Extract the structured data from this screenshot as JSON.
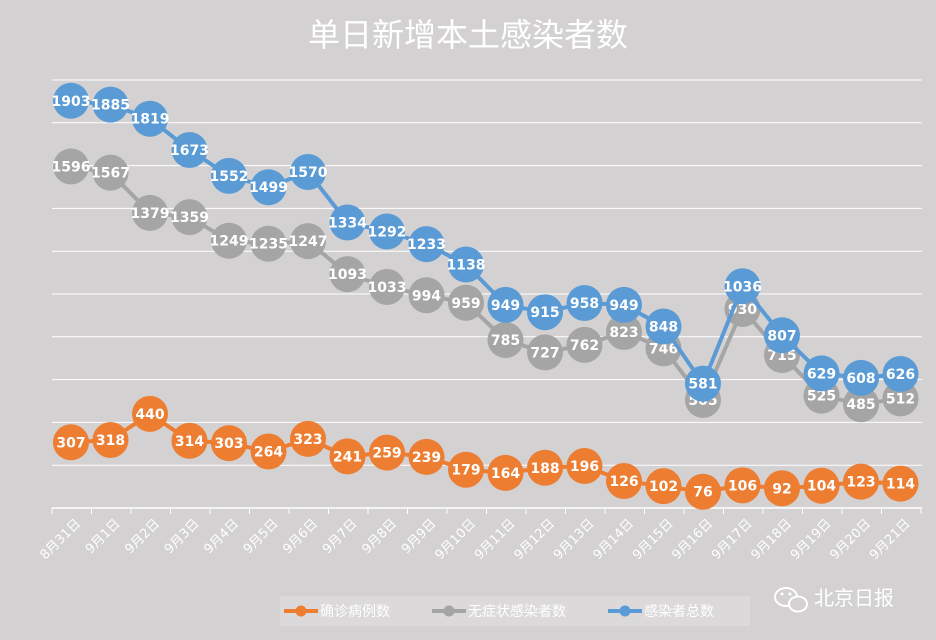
{
  "chart_data": {
    "type": "line",
    "title": "单日新增本土感染者数",
    "categories": [
      "8月31日",
      "9月1日",
      "9月2日",
      "9月3日",
      "9月4日",
      "9月5日",
      "9月6日",
      "9月7日",
      "9月8日",
      "9月9日",
      "9月10日",
      "9月11日",
      "9月12日",
      "9月13日",
      "9月14日",
      "9月15日",
      "9月16日",
      "9月17日",
      "9月18日",
      "9月19日",
      "9月20日",
      "9月21日"
    ],
    "series": [
      {
        "name": "确诊病例数",
        "color": "#ed7d31",
        "values": [
          307,
          318,
          440,
          314,
          303,
          264,
          323,
          241,
          259,
          239,
          179,
          164,
          188,
          196,
          126,
          102,
          76,
          106,
          92,
          104,
          123,
          114
        ]
      },
      {
        "name": "无症状感染者数",
        "color": "#a5a5a5",
        "values": [
          1596,
          1567,
          1379,
          1359,
          1249,
          1235,
          1247,
          1093,
          1033,
          994,
          959,
          785,
          727,
          762,
          823,
          746,
          505,
          930,
          715,
          525,
          485,
          512
        ]
      },
      {
        "name": "感染者总数",
        "color": "#5b9bd5",
        "values": [
          1903,
          1885,
          1819,
          1673,
          1552,
          1499,
          1570,
          1334,
          1292,
          1233,
          1138,
          949,
          915,
          958,
          949,
          848,
          581,
          1036,
          807,
          629,
          608,
          626
        ]
      }
    ],
    "ylim": [
      0,
      2000
    ],
    "grid": true,
    "legend_position": "bottom-center"
  },
  "watermark": {
    "text": "北京日报"
  }
}
